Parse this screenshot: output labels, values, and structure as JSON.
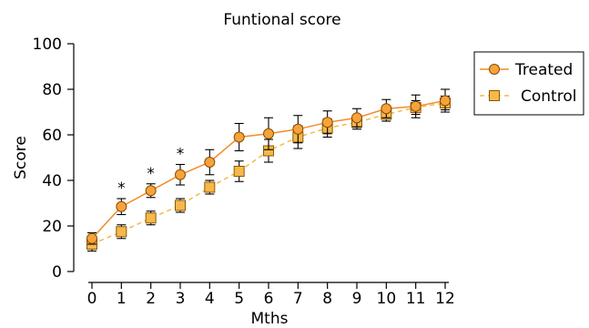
{
  "chart_data": {
    "type": "line",
    "title": "Funtional score",
    "xlabel": "Mths",
    "ylabel": "Score",
    "x": [
      0,
      1,
      2,
      3,
      4,
      5,
      6,
      7,
      8,
      9,
      10,
      11,
      12
    ],
    "xlim": [
      0,
      12
    ],
    "ylim": [
      0,
      100
    ],
    "yticks": [
      0,
      20,
      40,
      60,
      80,
      100
    ],
    "grid": false,
    "legend_position": "right",
    "series": [
      {
        "name": "Treated",
        "marker": "circle",
        "line_style": "solid",
        "color": "#F28C28",
        "marker_fill": "#F5A33B",
        "values": [
          14.5,
          28.5,
          35.5,
          42.5,
          48,
          59,
          60.5,
          62.5,
          65.5,
          67.5,
          71.5,
          72.5,
          75
        ],
        "error": [
          2.5,
          3.5,
          3,
          4.5,
          5.5,
          6,
          7,
          6,
          5,
          4,
          4,
          5,
          5
        ]
      },
      {
        "name": "Control",
        "marker": "square",
        "line_style": "dashed",
        "color": "#F5B942",
        "marker_fill": "#F7B84B",
        "values": [
          12,
          17.5,
          23.5,
          29,
          37,
          44,
          53,
          59,
          63,
          65.5,
          69,
          72,
          74
        ],
        "error": [
          3,
          3,
          3,
          3,
          3,
          4.5,
          5,
          5,
          4,
          3,
          3,
          3,
          3
        ]
      }
    ],
    "annotations": [
      {
        "text": "*",
        "x": 1
      },
      {
        "text": "*",
        "x": 2
      },
      {
        "text": "*",
        "x": 3
      }
    ]
  }
}
